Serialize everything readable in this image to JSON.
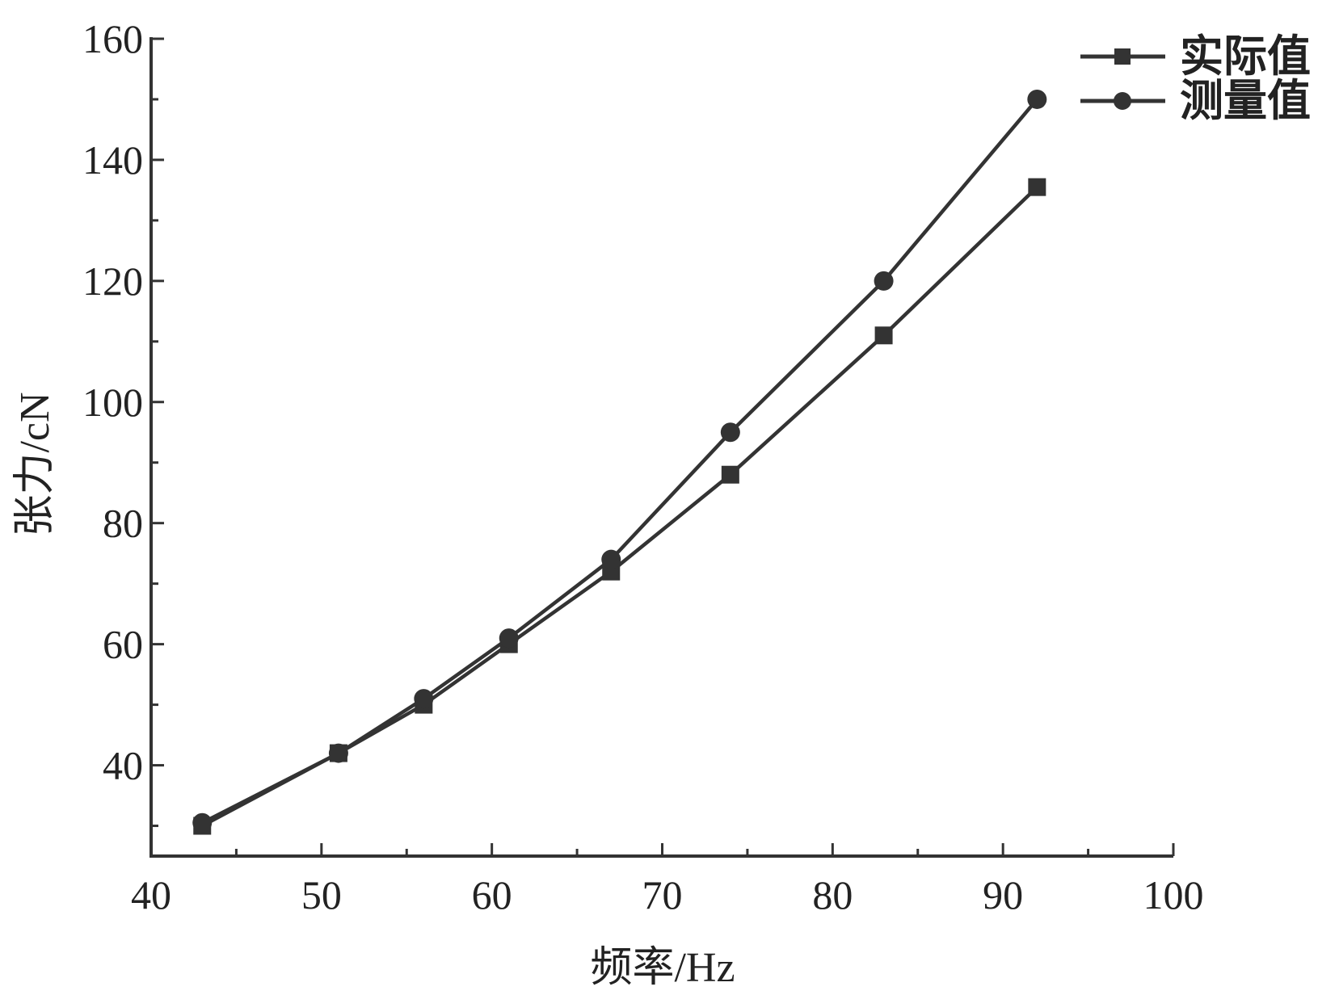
{
  "chart_data": {
    "type": "line",
    "xlabel": "频率/Hz",
    "ylabel": "张力/cN",
    "xlim": [
      40,
      100
    ],
    "ylim": [
      25,
      160
    ],
    "x_ticks": [
      40,
      50,
      60,
      70,
      80,
      90,
      100
    ],
    "y_ticks": [
      40,
      60,
      80,
      100,
      120,
      140,
      160
    ],
    "x_minor_step": 5,
    "y_minor_step": 10,
    "grid": false,
    "legend_position": "top-right",
    "line_color": "#333333",
    "x": [
      43,
      51,
      56,
      61,
      67,
      74,
      83,
      92
    ],
    "series": [
      {
        "name": "实际值",
        "marker": "square",
        "values": [
          30,
          42,
          50,
          60,
          72,
          88,
          111,
          135.5
        ]
      },
      {
        "name": "测量值",
        "marker": "circle",
        "values": [
          30.5,
          42,
          51,
          61,
          74,
          95,
          120,
          150
        ]
      }
    ]
  }
}
